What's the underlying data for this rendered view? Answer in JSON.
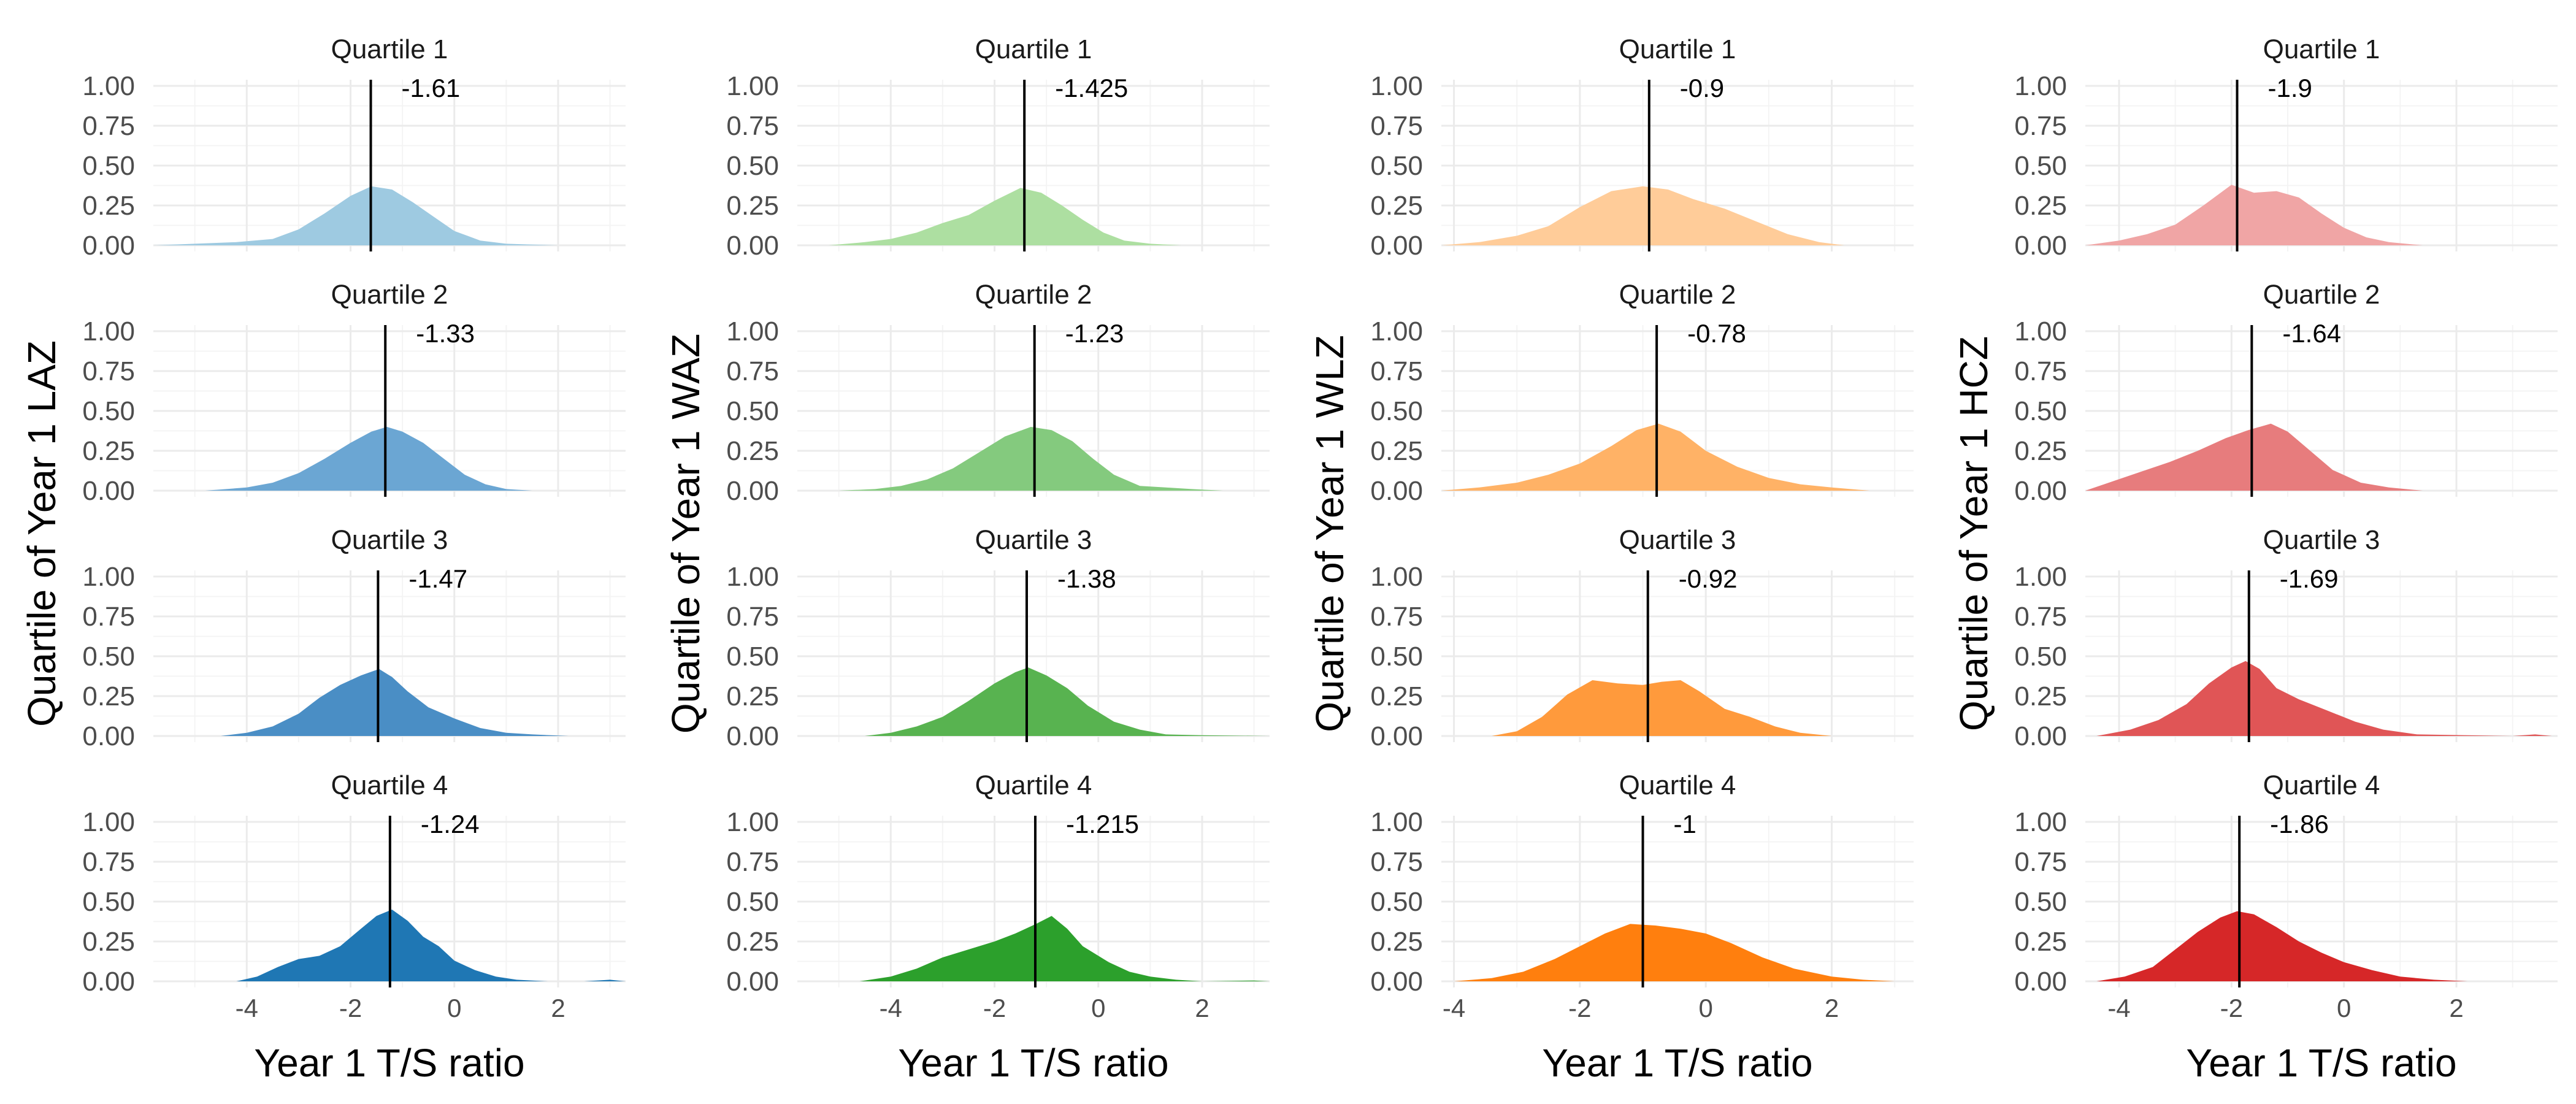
{
  "chart_data": [
    {
      "type": "area",
      "ylabel": "Quartile of Year 1 LAZ",
      "xlabel": "Year 1 T/S ratio",
      "xlim": [
        -5.8,
        3.3
      ],
      "ylim": [
        0,
        1
      ],
      "x_ticks": [
        -4,
        -2,
        0,
        2
      ],
      "y_ticks": [
        "0.00",
        "0.25",
        "0.50",
        "0.75",
        "1.00"
      ],
      "x_tick_labels": [
        "-4",
        "-2",
        "0",
        "2"
      ],
      "colors": [
        "#9ecae1",
        "#6ba6d3",
        "#4a8ec5",
        "#1f77b4"
      ],
      "alphas": [
        1.0,
        1.0,
        1.0,
        1.0
      ],
      "panels": [
        {
          "strip": "Quartile 1",
          "median": -1.61,
          "median_label": "-1.61",
          "x": [
            -5.8,
            -5.0,
            -4.2,
            -3.5,
            -3.0,
            -2.5,
            -2.0,
            -1.6,
            -1.2,
            -0.8,
            -0.4,
            0.0,
            0.5,
            1.0,
            1.5,
            2.0,
            3.3
          ],
          "y": [
            0.0,
            0.01,
            0.02,
            0.04,
            0.1,
            0.2,
            0.31,
            0.37,
            0.35,
            0.27,
            0.18,
            0.09,
            0.03,
            0.01,
            0.005,
            0.0,
            0.0
          ]
        },
        {
          "strip": "Quartile 2",
          "median": -1.33,
          "median_label": "-1.33",
          "x": [
            -4.8,
            -4.0,
            -3.5,
            -3.0,
            -2.5,
            -2.0,
            -1.6,
            -1.3,
            -1.0,
            -0.6,
            -0.2,
            0.2,
            0.6,
            1.0,
            1.5
          ],
          "y": [
            0.0,
            0.02,
            0.05,
            0.11,
            0.2,
            0.3,
            0.37,
            0.4,
            0.37,
            0.3,
            0.2,
            0.1,
            0.04,
            0.01,
            0.0
          ]
        },
        {
          "strip": "Quartile 3",
          "median": -1.47,
          "median_label": "-1.47",
          "x": [
            -4.5,
            -4.0,
            -3.5,
            -3.0,
            -2.6,
            -2.2,
            -1.8,
            -1.45,
            -1.2,
            -0.9,
            -0.5,
            0.0,
            0.5,
            1.0,
            1.5,
            2.2
          ],
          "y": [
            0.0,
            0.02,
            0.06,
            0.14,
            0.24,
            0.32,
            0.38,
            0.42,
            0.37,
            0.28,
            0.18,
            0.11,
            0.05,
            0.02,
            0.01,
            0.0
          ]
        },
        {
          "strip": "Quartile 4",
          "median": -1.24,
          "median_label": "-1.24",
          "x": [
            -4.2,
            -3.8,
            -3.4,
            -3.0,
            -2.6,
            -2.2,
            -1.8,
            -1.5,
            -1.2,
            -0.9,
            -0.6,
            -0.3,
            0.0,
            0.4,
            0.8,
            1.2,
            1.8,
            2.5,
            3.0,
            3.3
          ],
          "y": [
            0.0,
            0.03,
            0.09,
            0.14,
            0.16,
            0.22,
            0.33,
            0.41,
            0.45,
            0.38,
            0.28,
            0.22,
            0.13,
            0.07,
            0.03,
            0.01,
            0.0,
            0.0,
            0.01,
            0.0
          ]
        }
      ]
    },
    {
      "type": "area",
      "ylabel": "Quartile of Year 1 WAZ",
      "xlabel": "Year 1 T/S ratio",
      "xlim": [
        -5.8,
        3.3
      ],
      "ylim": [
        0,
        1
      ],
      "x_ticks": [
        -4,
        -2,
        0,
        2
      ],
      "y_ticks": [
        "0.00",
        "0.25",
        "0.50",
        "0.75",
        "1.00"
      ],
      "x_tick_labels": [
        "-4",
        "-2",
        "0",
        "2"
      ],
      "colors": [
        "#addfa1",
        "#84ca7e",
        "#58b350",
        "#2ca02c"
      ],
      "alphas": [
        1.0,
        1.0,
        1.0,
        1.0
      ],
      "panels": [
        {
          "strip": "Quartile 1",
          "median": -1.425,
          "median_label": "-1.425",
          "x": [
            -5.2,
            -4.5,
            -4.0,
            -3.5,
            -3.0,
            -2.5,
            -2.0,
            -1.5,
            -1.1,
            -0.7,
            -0.3,
            0.1,
            0.5,
            1.0,
            1.6
          ],
          "y": [
            0.0,
            0.02,
            0.04,
            0.08,
            0.14,
            0.19,
            0.28,
            0.36,
            0.33,
            0.25,
            0.16,
            0.08,
            0.03,
            0.01,
            0.0
          ]
        },
        {
          "strip": "Quartile 2",
          "median": -1.23,
          "median_label": "-1.23",
          "x": [
            -5.0,
            -4.3,
            -3.8,
            -3.3,
            -2.8,
            -2.3,
            -1.8,
            -1.3,
            -0.9,
            -0.5,
            -0.1,
            0.3,
            0.8,
            1.3,
            1.8,
            2.4
          ],
          "y": [
            0.0,
            0.01,
            0.03,
            0.07,
            0.14,
            0.24,
            0.34,
            0.4,
            0.38,
            0.31,
            0.2,
            0.1,
            0.03,
            0.02,
            0.01,
            0.0
          ]
        },
        {
          "strip": "Quartile 3",
          "median": -1.38,
          "median_label": "-1.38",
          "x": [
            -4.5,
            -4.0,
            -3.5,
            -3.0,
            -2.5,
            -2.0,
            -1.6,
            -1.35,
            -1.0,
            -0.6,
            -0.2,
            0.3,
            0.8,
            1.3,
            2.0,
            3.3
          ],
          "y": [
            0.0,
            0.02,
            0.06,
            0.12,
            0.22,
            0.33,
            0.4,
            0.43,
            0.38,
            0.3,
            0.19,
            0.09,
            0.04,
            0.01,
            0.005,
            0.0
          ]
        },
        {
          "strip": "Quartile 4",
          "median": -1.215,
          "median_label": "-1.215",
          "x": [
            -4.6,
            -4.0,
            -3.5,
            -3.0,
            -2.5,
            -2.0,
            -1.6,
            -1.2,
            -0.9,
            -0.6,
            -0.3,
            0.2,
            0.6,
            1.0,
            1.5,
            2.0,
            3.0,
            3.3
          ],
          "y": [
            0.0,
            0.03,
            0.08,
            0.15,
            0.2,
            0.25,
            0.3,
            0.36,
            0.41,
            0.33,
            0.22,
            0.12,
            0.06,
            0.03,
            0.01,
            0.0,
            0.005,
            0.0
          ]
        }
      ]
    },
    {
      "type": "area",
      "ylabel": "Quartile of Year 1 WLZ",
      "xlabel": "Year 1 T/S ratio",
      "xlim": [
        -4.2,
        3.3
      ],
      "ylim": [
        0,
        1
      ],
      "x_ticks": [
        -4,
        -2,
        0,
        2
      ],
      "y_ticks": [
        "0.00",
        "0.25",
        "0.50",
        "0.75",
        "1.00"
      ],
      "x_tick_labels": [
        "-4",
        "-2",
        "0",
        "2"
      ],
      "colors": [
        "#ffcc99",
        "#ffb266",
        "#ff9a3c",
        "#ff7f0e"
      ],
      "alphas": [
        1.0,
        1.0,
        1.0,
        1.0
      ],
      "panels": [
        {
          "strip": "Quartile 1",
          "median": -0.9,
          "median_label": "-0.9",
          "x": [
            -4.2,
            -3.6,
            -3.0,
            -2.5,
            -2.0,
            -1.5,
            -1.0,
            -0.6,
            -0.2,
            0.3,
            0.8,
            1.3,
            1.8,
            2.2
          ],
          "y": [
            0.0,
            0.02,
            0.06,
            0.12,
            0.24,
            0.34,
            0.37,
            0.35,
            0.29,
            0.23,
            0.15,
            0.07,
            0.02,
            0.0
          ]
        },
        {
          "strip": "Quartile 2",
          "median": -0.78,
          "median_label": "-0.78",
          "x": [
            -4.2,
            -3.6,
            -3.0,
            -2.5,
            -2.0,
            -1.5,
            -1.1,
            -0.75,
            -0.4,
            0.0,
            0.5,
            1.0,
            1.5,
            2.0,
            2.6
          ],
          "y": [
            0.0,
            0.02,
            0.05,
            0.1,
            0.17,
            0.28,
            0.38,
            0.42,
            0.37,
            0.25,
            0.15,
            0.08,
            0.04,
            0.02,
            0.0
          ]
        },
        {
          "strip": "Quartile 3",
          "median": -0.92,
          "median_label": "-0.92",
          "x": [
            -3.4,
            -3.0,
            -2.6,
            -2.2,
            -1.8,
            -1.4,
            -1.0,
            -0.7,
            -0.4,
            -0.1,
            0.3,
            0.7,
            1.1,
            1.5,
            2.0
          ],
          "y": [
            0.0,
            0.03,
            0.12,
            0.26,
            0.35,
            0.33,
            0.32,
            0.34,
            0.35,
            0.28,
            0.17,
            0.12,
            0.06,
            0.02,
            0.0
          ]
        },
        {
          "strip": "Quartile 4",
          "median": -1.0,
          "median_label": "-1",
          "x": [
            -4.0,
            -3.4,
            -2.9,
            -2.4,
            -2.0,
            -1.6,
            -1.2,
            -0.8,
            -0.4,
            0.0,
            0.4,
            0.9,
            1.4,
            2.0,
            2.5,
            3.0
          ],
          "y": [
            0.0,
            0.02,
            0.06,
            0.14,
            0.22,
            0.3,
            0.36,
            0.35,
            0.33,
            0.3,
            0.24,
            0.15,
            0.08,
            0.03,
            0.01,
            0.0
          ]
        }
      ]
    },
    {
      "type": "area",
      "ylabel": "Quartile of Year 1 HCZ",
      "xlabel": "Year 1 T/S ratio",
      "xlim": [
        -4.6,
        3.8
      ],
      "ylim": [
        0,
        1
      ],
      "x_ticks": [
        -4,
        -2,
        0,
        2
      ],
      "y_ticks": [
        "0.00",
        "0.25",
        "0.50",
        "0.75",
        "1.00"
      ],
      "x_tick_labels": [
        "-4",
        "-2",
        "0",
        "2"
      ],
      "colors": [
        "#f0a5a5",
        "#e77c7d",
        "#e05556",
        "#d62728"
      ],
      "alphas": [
        1.0,
        1.0,
        1.0,
        1.0
      ],
      "panels": [
        {
          "strip": "Quartile 1",
          "median": -1.9,
          "median_label": "-1.9",
          "x": [
            -4.6,
            -4.0,
            -3.5,
            -3.0,
            -2.5,
            -2.0,
            -1.6,
            -1.2,
            -0.8,
            -0.4,
            0.0,
            0.4,
            0.8,
            1.4
          ],
          "y": [
            0.0,
            0.03,
            0.07,
            0.13,
            0.25,
            0.38,
            0.33,
            0.34,
            0.3,
            0.2,
            0.11,
            0.05,
            0.02,
            0.0
          ]
        },
        {
          "strip": "Quartile 2",
          "median": -1.64,
          "median_label": "-1.64",
          "x": [
            -4.6,
            -4.1,
            -3.6,
            -3.1,
            -2.6,
            -2.1,
            -1.7,
            -1.3,
            -1.0,
            -0.6,
            -0.2,
            0.3,
            0.8,
            1.4
          ],
          "y": [
            0.0,
            0.06,
            0.12,
            0.18,
            0.25,
            0.33,
            0.38,
            0.42,
            0.37,
            0.25,
            0.13,
            0.05,
            0.02,
            0.0
          ]
        },
        {
          "strip": "Quartile 3",
          "median": -1.69,
          "median_label": "-1.69",
          "x": [
            -4.4,
            -3.8,
            -3.3,
            -2.8,
            -2.4,
            -2.0,
            -1.75,
            -1.5,
            -1.2,
            -0.8,
            -0.3,
            0.2,
            0.7,
            1.3,
            3.0,
            3.4,
            3.7
          ],
          "y": [
            0.0,
            0.04,
            0.1,
            0.2,
            0.33,
            0.43,
            0.47,
            0.42,
            0.3,
            0.23,
            0.16,
            0.09,
            0.04,
            0.01,
            0.0,
            0.01,
            0.0
          ]
        },
        {
          "strip": "Quartile 4",
          "median": -1.86,
          "median_label": "-1.86",
          "x": [
            -4.4,
            -3.9,
            -3.4,
            -3.0,
            -2.6,
            -2.2,
            -1.9,
            -1.6,
            -1.2,
            -0.8,
            -0.4,
            0.0,
            0.5,
            1.0,
            1.6,
            2.2
          ],
          "y": [
            0.0,
            0.03,
            0.09,
            0.2,
            0.31,
            0.4,
            0.44,
            0.42,
            0.34,
            0.25,
            0.18,
            0.12,
            0.07,
            0.03,
            0.01,
            0.0
          ]
        }
      ]
    }
  ]
}
